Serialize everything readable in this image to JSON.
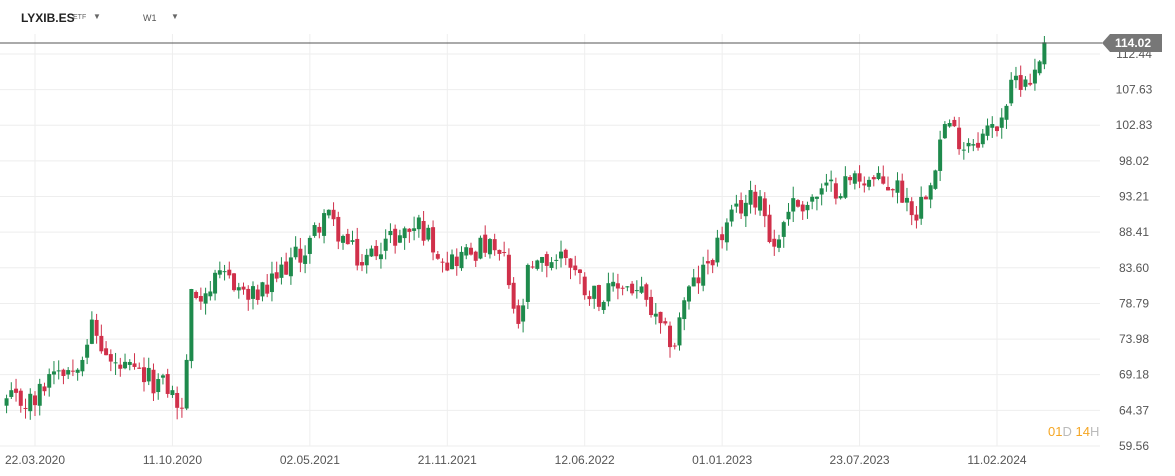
{
  "toolbar": {
    "symbol": "LYXIB.ES",
    "symbol_type": "ETF",
    "interval": "W1",
    "caret_icon": "caret-down-icon"
  },
  "chart_data": {
    "type": "candlestick",
    "title": "",
    "xlabel": "",
    "ylabel": "",
    "ylim": [
      59.56,
      114.5
    ],
    "y_ticks": [
      "112.44",
      "107.63",
      "102.83",
      "98.02",
      "93.21",
      "88.41",
      "83.60",
      "78.79",
      "73.98",
      "69.18",
      "64.37",
      "59.56"
    ],
    "x_ticks": [
      "22.03.2020",
      "11.10.2020",
      "02.05.2021",
      "21.11.2021",
      "12.06.2022",
      "01.01.2023",
      "23.07.2023",
      "11.02.2024"
    ],
    "grid": true,
    "current_price": 114.02,
    "current_price_label": "114.02",
    "colors": {
      "up": "#1e8a4c",
      "down": "#d0304a",
      "grid": "#eeeeee",
      "price_line": "#555555"
    },
    "anchor_closes": [
      [
        "22.03.2020",
        65.5
      ],
      [
        "19.04.2020",
        70.5
      ],
      [
        "17.05.2020",
        70.0
      ],
      [
        "14.06.2020",
        75.5
      ],
      [
        "12.07.2020",
        70.5
      ],
      [
        "09.08.2020",
        69.5
      ],
      [
        "06.09.2020",
        68.5
      ],
      [
        "04.10.2020",
        67.5
      ],
      [
        "11.10.2020",
        66.5
      ],
      [
        "25.10.2020",
        64.0
      ],
      [
        "08.11.2020",
        79.5
      ],
      [
        "06.12.2020",
        81.0
      ],
      [
        "03.01.2021",
        82.5
      ],
      [
        "31.01.2021",
        79.5
      ],
      [
        "28.02.2021",
        80.5
      ],
      [
        "28.03.2021",
        84.0
      ],
      [
        "25.04.2021",
        86.0
      ],
      [
        "02.05.2021",
        87.0
      ],
      [
        "23.05.2021",
        91.0
      ],
      [
        "20.06.2021",
        87.5
      ],
      [
        "18.07.2021",
        84.0
      ],
      [
        "15.08.2021",
        87.0
      ],
      [
        "12.09.2021",
        88.0
      ],
      [
        "10.10.2021",
        89.5
      ],
      [
        "21.11.2021",
        84.5
      ],
      [
        "19.12.2021",
        85.5
      ],
      [
        "16.01.2022",
        86.5
      ],
      [
        "13.02.2022",
        84.5
      ],
      [
        "06.03.2022",
        75.0
      ],
      [
        "20.03.2022",
        82.5
      ],
      [
        "17.04.2022",
        84.5
      ],
      [
        "15.05.2022",
        85.5
      ],
      [
        "12.06.2022",
        81.0
      ],
      [
        "10.07.2022",
        79.5
      ],
      [
        "07.08.2022",
        81.5
      ],
      [
        "04.09.2022",
        80.0
      ],
      [
        "02.10.2022",
        75.0
      ],
      [
        "23.10.2022",
        73.5
      ],
      [
        "06.11.2022",
        79.5
      ],
      [
        "04.12.2022",
        83.0
      ],
      [
        "01.01.2023",
        88.0
      ],
      [
        "29.01.2023",
        92.0
      ],
      [
        "26.02.2023",
        93.5
      ],
      [
        "19.03.2023",
        86.0
      ],
      [
        "09.04.2023",
        92.0
      ],
      [
        "07.05.2023",
        92.5
      ],
      [
        "04.06.2023",
        94.0
      ],
      [
        "02.07.2023",
        95.0
      ],
      [
        "23.07.2023",
        96.0
      ],
      [
        "20.08.2023",
        95.0
      ],
      [
        "17.09.2023",
        94.5
      ],
      [
        "15.10.2023",
        91.0
      ],
      [
        "05.11.2023",
        96.0
      ],
      [
        "26.11.2023",
        103.0
      ],
      [
        "24.12.2023",
        100.5
      ],
      [
        "21.01.2024",
        101.5
      ],
      [
        "11.02.2024",
        103.0
      ],
      [
        "10.03.2024",
        109.0
      ],
      [
        "07.04.2024",
        109.5
      ],
      [
        "21.04.2024",
        114.02
      ]
    ]
  }
}
